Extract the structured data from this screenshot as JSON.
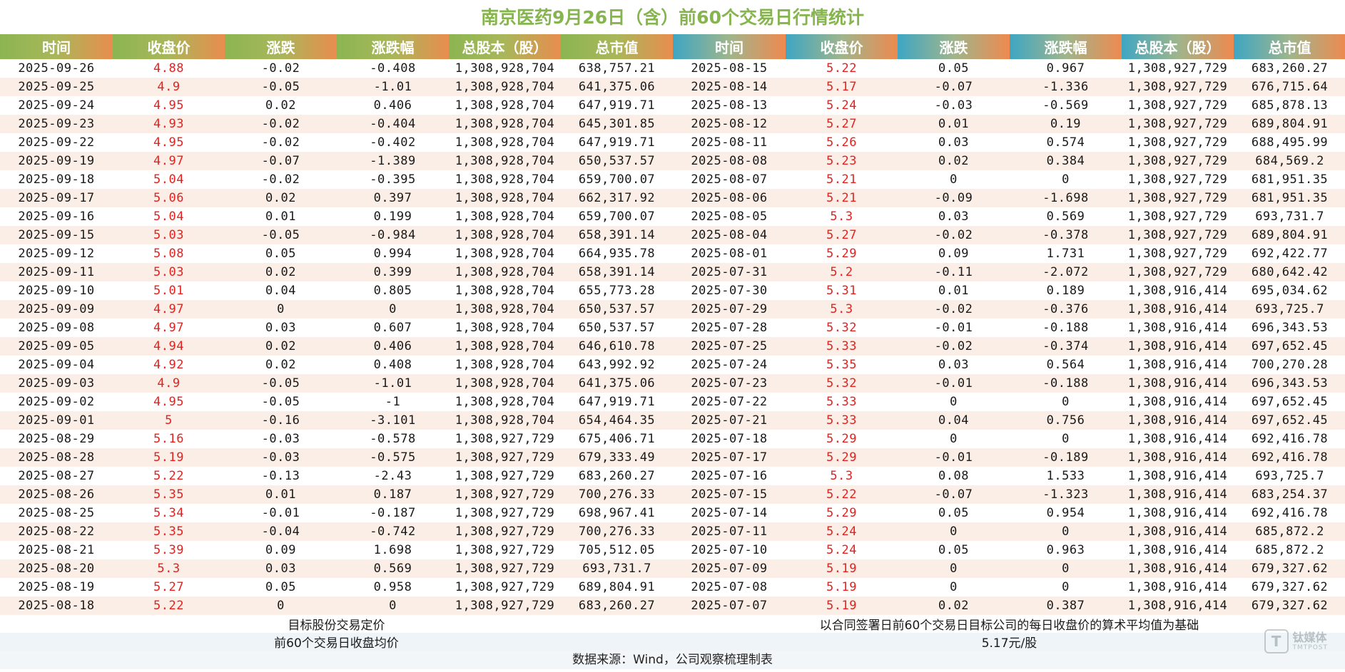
{
  "title": "南京医药9月26日（含）前60个交易日行情统计",
  "headers": [
    "时间",
    "收盘价",
    "涨跌",
    "涨跌幅",
    "总股本（股）",
    "总市值"
  ],
  "left_rows": [
    [
      "2025-09-26",
      "4.88",
      "-0.02",
      "-0.408",
      "1,308,928,704",
      "638,757.21"
    ],
    [
      "2025-09-25",
      "4.9",
      "-0.05",
      "-1.01",
      "1,308,928,704",
      "641,375.06"
    ],
    [
      "2025-09-24",
      "4.95",
      "0.02",
      "0.406",
      "1,308,928,704",
      "647,919.71"
    ],
    [
      "2025-09-23",
      "4.93",
      "-0.02",
      "-0.404",
      "1,308,928,704",
      "645,301.85"
    ],
    [
      "2025-09-22",
      "4.95",
      "-0.02",
      "-0.402",
      "1,308,928,704",
      "647,919.71"
    ],
    [
      "2025-09-19",
      "4.97",
      "-0.07",
      "-1.389",
      "1,308,928,704",
      "650,537.57"
    ],
    [
      "2025-09-18",
      "5.04",
      "-0.02",
      "-0.395",
      "1,308,928,704",
      "659,700.07"
    ],
    [
      "2025-09-17",
      "5.06",
      "0.02",
      "0.397",
      "1,308,928,704",
      "662,317.92"
    ],
    [
      "2025-09-16",
      "5.04",
      "0.01",
      "0.199",
      "1,308,928,704",
      "659,700.07"
    ],
    [
      "2025-09-15",
      "5.03",
      "-0.05",
      "-0.984",
      "1,308,928,704",
      "658,391.14"
    ],
    [
      "2025-09-12",
      "5.08",
      "0.05",
      "0.994",
      "1,308,928,704",
      "664,935.78"
    ],
    [
      "2025-09-11",
      "5.03",
      "0.02",
      "0.399",
      "1,308,928,704",
      "658,391.14"
    ],
    [
      "2025-09-10",
      "5.01",
      "0.04",
      "0.805",
      "1,308,928,704",
      "655,773.28"
    ],
    [
      "2025-09-09",
      "4.97",
      "0",
      "0",
      "1,308,928,704",
      "650,537.57"
    ],
    [
      "2025-09-08",
      "4.97",
      "0.03",
      "0.607",
      "1,308,928,704",
      "650,537.57"
    ],
    [
      "2025-09-05",
      "4.94",
      "0.02",
      "0.406",
      "1,308,928,704",
      "646,610.78"
    ],
    [
      "2025-09-04",
      "4.92",
      "0.02",
      "0.408",
      "1,308,928,704",
      "643,992.92"
    ],
    [
      "2025-09-03",
      "4.9",
      "-0.05",
      "-1.01",
      "1,308,928,704",
      "641,375.06"
    ],
    [
      "2025-09-02",
      "4.95",
      "-0.05",
      "-1",
      "1,308,928,704",
      "647,919.71"
    ],
    [
      "2025-09-01",
      "5",
      "-0.16",
      "-3.101",
      "1,308,928,704",
      "654,464.35"
    ],
    [
      "2025-08-29",
      "5.16",
      "-0.03",
      "-0.578",
      "1,308,927,729",
      "675,406.71"
    ],
    [
      "2025-08-28",
      "5.19",
      "-0.03",
      "-0.575",
      "1,308,927,729",
      "679,333.49"
    ],
    [
      "2025-08-27",
      "5.22",
      "-0.13",
      "-2.43",
      "1,308,927,729",
      "683,260.27"
    ],
    [
      "2025-08-26",
      "5.35",
      "0.01",
      "0.187",
      "1,308,927,729",
      "700,276.33"
    ],
    [
      "2025-08-25",
      "5.34",
      "-0.01",
      "-0.187",
      "1,308,927,729",
      "698,967.41"
    ],
    [
      "2025-08-22",
      "5.35",
      "-0.04",
      "-0.742",
      "1,308,927,729",
      "700,276.33"
    ],
    [
      "2025-08-21",
      "5.39",
      "0.09",
      "1.698",
      "1,308,927,729",
      "705,512.05"
    ],
    [
      "2025-08-20",
      "5.3",
      "0.03",
      "0.569",
      "1,308,927,729",
      "693,731.7"
    ],
    [
      "2025-08-19",
      "5.27",
      "0.05",
      "0.958",
      "1,308,927,729",
      "689,804.91"
    ],
    [
      "2025-08-18",
      "5.22",
      "0",
      "0",
      "1,308,927,729",
      "683,260.27"
    ]
  ],
  "right_rows": [
    [
      "2025-08-15",
      "5.22",
      "0.05",
      "0.967",
      "1,308,927,729",
      "683,260.27"
    ],
    [
      "2025-08-14",
      "5.17",
      "-0.07",
      "-1.336",
      "1,308,927,729",
      "676,715.64"
    ],
    [
      "2025-08-13",
      "5.24",
      "-0.03",
      "-0.569",
      "1,308,927,729",
      "685,878.13"
    ],
    [
      "2025-08-12",
      "5.27",
      "0.01",
      "0.19",
      "1,308,927,729",
      "689,804.91"
    ],
    [
      "2025-08-11",
      "5.26",
      "0.03",
      "0.574",
      "1,308,927,729",
      "688,495.99"
    ],
    [
      "2025-08-08",
      "5.23",
      "0.02",
      "0.384",
      "1,308,927,729",
      "684,569.2"
    ],
    [
      "2025-08-07",
      "5.21",
      "0",
      "0",
      "1,308,927,729",
      "681,951.35"
    ],
    [
      "2025-08-06",
      "5.21",
      "-0.09",
      "-1.698",
      "1,308,927,729",
      "681,951.35"
    ],
    [
      "2025-08-05",
      "5.3",
      "0.03",
      "0.569",
      "1,308,927,729",
      "693,731.7"
    ],
    [
      "2025-08-04",
      "5.27",
      "-0.02",
      "-0.378",
      "1,308,927,729",
      "689,804.91"
    ],
    [
      "2025-08-01",
      "5.29",
      "0.09",
      "1.731",
      "1,308,927,729",
      "692,422.77"
    ],
    [
      "2025-07-31",
      "5.2",
      "-0.11",
      "-2.072",
      "1,308,927,729",
      "680,642.42"
    ],
    [
      "2025-07-30",
      "5.31",
      "0.01",
      "0.189",
      "1,308,916,414",
      "695,034.62"
    ],
    [
      "2025-07-29",
      "5.3",
      "-0.02",
      "-0.376",
      "1,308,916,414",
      "693,725.7"
    ],
    [
      "2025-07-28",
      "5.32",
      "-0.01",
      "-0.188",
      "1,308,916,414",
      "696,343.53"
    ],
    [
      "2025-07-25",
      "5.33",
      "-0.02",
      "-0.374",
      "1,308,916,414",
      "697,652.45"
    ],
    [
      "2025-07-24",
      "5.35",
      "0.03",
      "0.564",
      "1,308,916,414",
      "700,270.28"
    ],
    [
      "2025-07-23",
      "5.32",
      "-0.01",
      "-0.188",
      "1,308,916,414",
      "696,343.53"
    ],
    [
      "2025-07-22",
      "5.33",
      "0",
      "0",
      "1,308,916,414",
      "697,652.45"
    ],
    [
      "2025-07-21",
      "5.33",
      "0.04",
      "0.756",
      "1,308,916,414",
      "697,652.45"
    ],
    [
      "2025-07-18",
      "5.29",
      "0",
      "0",
      "1,308,916,414",
      "692,416.78"
    ],
    [
      "2025-07-17",
      "5.29",
      "-0.01",
      "-0.189",
      "1,308,916,414",
      "692,416.78"
    ],
    [
      "2025-07-16",
      "5.3",
      "0.08",
      "1.533",
      "1,308,916,414",
      "693,725.7"
    ],
    [
      "2025-07-15",
      "5.22",
      "-0.07",
      "-1.323",
      "1,308,916,414",
      "683,254.37"
    ],
    [
      "2025-07-14",
      "5.29",
      "0.05",
      "0.954",
      "1,308,916,414",
      "692,416.78"
    ],
    [
      "2025-07-11",
      "5.24",
      "0",
      "0",
      "1,308,916,414",
      "685,872.2"
    ],
    [
      "2025-07-10",
      "5.24",
      "0.05",
      "0.963",
      "1,308,916,414",
      "685,872.2"
    ],
    [
      "2025-07-09",
      "5.19",
      "0",
      "0",
      "1,308,916,414",
      "679,327.62"
    ],
    [
      "2025-07-08",
      "5.19",
      "0",
      "0",
      "1,308,916,414",
      "679,327.62"
    ],
    [
      "2025-07-07",
      "5.19",
      "0.02",
      "0.387",
      "1,308,916,414",
      "679,327.62"
    ]
  ],
  "footer": {
    "left_line1": "目标股份交易定价",
    "left_line2": "前60个交易日收盘均价",
    "right_line1": "以合同签署日前60个交易日目标公司的每日收盘价的算术平均值为基础",
    "right_line2": "5.17元/股"
  },
  "source": "数据来源：Wind，公司观察梳理制表",
  "watermark": {
    "cn": "钛媒体",
    "en": "TMTPOST",
    "icon": "tmtpost-logo-icon"
  },
  "colors": {
    "title": "#86b54e",
    "close_price": "#e8201e",
    "stripe": "#fbeee6",
    "header_left_gradient": [
      "#8cb552",
      "#e98d4f"
    ],
    "header_right_gradient": [
      "#3ea6c3",
      "#ee8a4f"
    ]
  }
}
